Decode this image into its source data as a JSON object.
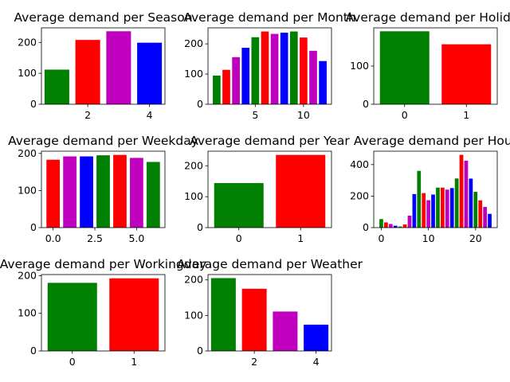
{
  "figure": {
    "background": "#ffffff"
  },
  "chart_data": [
    {
      "type": "bar",
      "title": "Average demand per Season",
      "x": [
        1,
        2,
        3,
        4
      ],
      "values": [
        112,
        208,
        236,
        199
      ],
      "colors": [
        "#008000",
        "#ff0000",
        "#bf00bf",
        "#0000ff"
      ],
      "xticks": [
        2,
        4
      ],
      "xtick_labels": [
        "2",
        "4"
      ],
      "xlim": [
        0.5,
        4.5
      ],
      "yticks": [
        0,
        100,
        200
      ],
      "ytick_labels": [
        "0",
        "100",
        "200"
      ],
      "ylim": [
        0,
        247
      ]
    },
    {
      "type": "bar",
      "title": "Average demand per Month",
      "x": [
        1,
        2,
        3,
        4,
        5,
        6,
        7,
        8,
        9,
        10,
        11,
        12
      ],
      "values": [
        95,
        114,
        156,
        187,
        222,
        241,
        233,
        237,
        241,
        221,
        177,
        143
      ],
      "colors": [
        "#008000",
        "#ff0000",
        "#bf00bf",
        "#0000ff",
        "#008000",
        "#ff0000",
        "#bf00bf",
        "#0000ff",
        "#008000",
        "#ff0000",
        "#bf00bf",
        "#0000ff"
      ],
      "xticks": [
        5,
        10
      ],
      "xtick_labels": [
        "5",
        "10"
      ],
      "xlim": [
        0.1,
        12.9
      ],
      "yticks": [
        0,
        100,
        200
      ],
      "ytick_labels": [
        "0",
        "100",
        "200"
      ],
      "ylim": [
        0,
        253
      ]
    },
    {
      "type": "bar",
      "title": "Average demand per Holiday",
      "x": [
        0,
        1
      ],
      "values": [
        191,
        157
      ],
      "colors": [
        "#008000",
        "#ff0000"
      ],
      "xticks": [
        0,
        1
      ],
      "xtick_labels": [
        "0",
        "1"
      ],
      "xlim": [
        -0.5,
        1.5
      ],
      "yticks": [
        0,
        100
      ],
      "ytick_labels": [
        "0",
        "100"
      ],
      "ylim": [
        0,
        200
      ]
    },
    {
      "type": "bar",
      "title": "Average demand per Weekday",
      "x": [
        0,
        1,
        2,
        3,
        4,
        5,
        6
      ],
      "values": [
        183,
        192,
        192,
        195,
        196,
        188,
        177
      ],
      "colors": [
        "#ff0000",
        "#bf00bf",
        "#0000ff",
        "#008000",
        "#ff0000",
        "#bf00bf",
        "#008000"
      ],
      "xticks": [
        0,
        2.5,
        5
      ],
      "xtick_labels": [
        "0.0",
        "2.5",
        "5.0"
      ],
      "xlim": [
        -0.7,
        6.7
      ],
      "yticks": [
        0,
        100,
        200
      ],
      "ytick_labels": [
        "0",
        "100",
        "200"
      ],
      "ylim": [
        0,
        206
      ]
    },
    {
      "type": "bar",
      "title": "Average demand per Year",
      "x": [
        0,
        1
      ],
      "values": [
        144,
        235
      ],
      "colors": [
        "#008000",
        "#ff0000"
      ],
      "xticks": [
        0,
        1
      ],
      "xtick_labels": [
        "0",
        "1"
      ],
      "xlim": [
        -0.5,
        1.5
      ],
      "yticks": [
        0,
        100,
        200
      ],
      "ytick_labels": [
        "0",
        "100",
        "200"
      ],
      "ylim": [
        0,
        247
      ]
    },
    {
      "type": "bar",
      "title": "Average demand per Hour",
      "x": [
        0,
        1,
        2,
        3,
        4,
        5,
        6,
        7,
        8,
        9,
        10,
        11,
        12,
        13,
        14,
        15,
        16,
        17,
        18,
        19,
        20,
        21,
        22,
        23
      ],
      "values": [
        54,
        33,
        23,
        12,
        7,
        20,
        76,
        213,
        360,
        219,
        174,
        210,
        254,
        254,
        241,
        251,
        312,
        462,
        425,
        311,
        227,
        173,
        131,
        87
      ],
      "colors": [
        "#008000",
        "#ff0000",
        "#bf00bf",
        "#0000ff",
        "#008000",
        "#ff0000",
        "#bf00bf",
        "#0000ff",
        "#008000",
        "#ff0000",
        "#bf00bf",
        "#0000ff",
        "#008000",
        "#ff0000",
        "#bf00bf",
        "#0000ff",
        "#008000",
        "#ff0000",
        "#bf00bf",
        "#0000ff",
        "#008000",
        "#ff0000",
        "#bf00bf",
        "#0000ff"
      ],
      "xticks": [
        0,
        10,
        20
      ],
      "xtick_labels": [
        "0",
        "10",
        "20"
      ],
      "xlim": [
        -1.6,
        24.6
      ],
      "yticks": [
        0,
        200,
        400
      ],
      "ytick_labels": [
        "0",
        "200",
        "400"
      ],
      "ylim": [
        0,
        485
      ]
    },
    {
      "type": "bar",
      "title": "Average demand per Workingday",
      "x": [
        0,
        1
      ],
      "values": [
        181,
        193
      ],
      "colors": [
        "#008000",
        "#ff0000"
      ],
      "xticks": [
        0,
        1
      ],
      "xtick_labels": [
        "0",
        "1"
      ],
      "xlim": [
        -0.5,
        1.5
      ],
      "yticks": [
        0,
        100,
        200
      ],
      "ytick_labels": [
        "0",
        "100",
        "200"
      ],
      "ylim": [
        0,
        203
      ]
    },
    {
      "type": "bar",
      "title": "Average demand per Weather",
      "x": [
        1,
        2,
        3,
        4
      ],
      "values": [
        205,
        175,
        111,
        74
      ],
      "colors": [
        "#008000",
        "#ff0000",
        "#bf00bf",
        "#0000ff"
      ],
      "xticks": [
        2,
        4
      ],
      "xtick_labels": [
        "2",
        "4"
      ],
      "xlim": [
        0.5,
        4.5
      ],
      "yticks": [
        0,
        100,
        200
      ],
      "ytick_labels": [
        "0",
        "100",
        "200"
      ],
      "ylim": [
        0,
        215
      ]
    }
  ]
}
